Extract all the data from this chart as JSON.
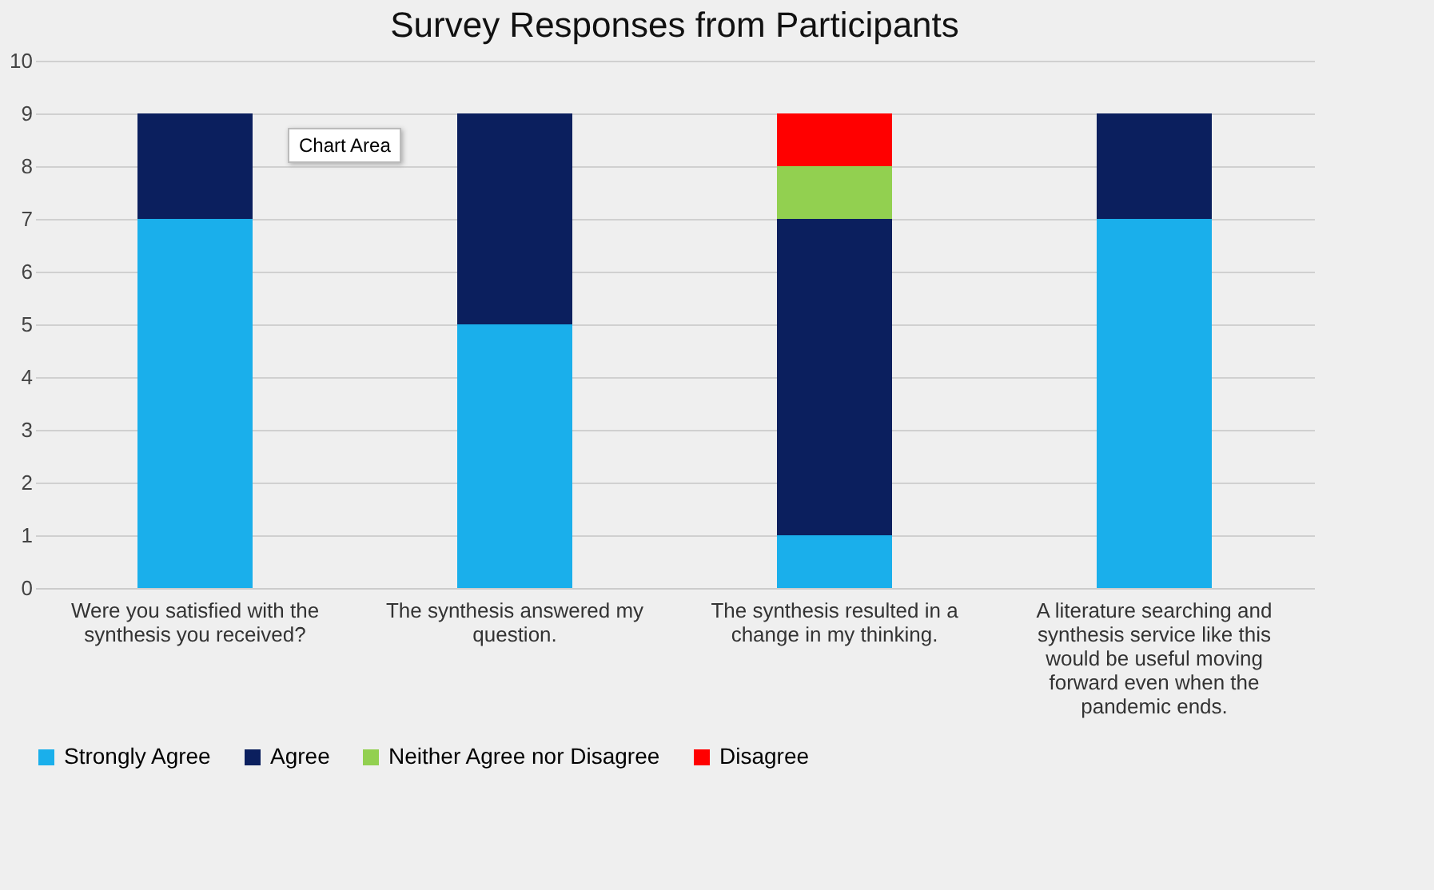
{
  "chart_data": {
    "type": "bar",
    "title": "Survey Responses from Participants",
    "categories": [
      "Were you satisfied with the synthesis you received?",
      "The synthesis answered my question.",
      "The synthesis resulted in a change in my thinking.",
      "A literature searching and synthesis service like this would be useful moving forward even when the pandemic ends."
    ],
    "series": [
      {
        "name": "Strongly Agree",
        "color": "#1aafeb",
        "values": [
          7,
          5,
          1,
          7
        ]
      },
      {
        "name": "Agree",
        "color": "#0b1f5e",
        "values": [
          2,
          4,
          6,
          2
        ]
      },
      {
        "name": "Neither Agree nor Disagree",
        "color": "#92d050",
        "values": [
          0,
          0,
          1,
          0
        ]
      },
      {
        "name": "Disagree",
        "color": "#ff0000",
        "values": [
          0,
          0,
          1,
          0
        ]
      }
    ],
    "stacked": true,
    "ylim": [
      0,
      10
    ],
    "yticks": [
      0,
      1,
      2,
      3,
      4,
      5,
      6,
      7,
      8,
      9,
      10
    ],
    "grid": "y",
    "legend": "bottom",
    "annotations": [
      "Chart Area"
    ]
  }
}
